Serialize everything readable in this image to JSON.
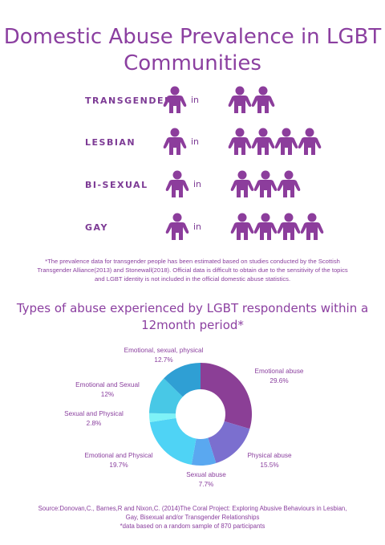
{
  "title": "Domestic Abuse Prevalence in LGBT Communities",
  "prevalence": [
    {
      "label": "TRANSGENDER",
      "numerator": 1,
      "in_text": "in",
      "denominator": 2
    },
    {
      "label": "LESBIAN",
      "numerator": 1,
      "in_text": "in",
      "denominator": 4
    },
    {
      "label": "BI-SEXUAL",
      "numerator": 1,
      "in_text": "in",
      "denominator": 3
    },
    {
      "label": "GAY",
      "numerator": 1,
      "in_text": "in",
      "denominator": 4
    }
  ],
  "note": "*The prevalence data for transgender people has been estimated based on studies conducted by the Scottish Transgender Alliance(2013) and Stonewall(2018). Official data is difficult to obtain due to the sensitivity of the topics and LGBT identity is not included in the  official domestic abuse statistics.",
  "chart_data": {
    "type": "pie",
    "title": "Types of abuse experienced by LGBT respondents within a 12month period*",
    "categories": [
      "Emotional abuse",
      "Physical abuse",
      "Sexual abuse",
      "Emotional and Physical",
      "Sexual and Physical",
      "Emotional and Sexual",
      "Emotional, sexual, physical"
    ],
    "values": [
      29.6,
      15.5,
      7.7,
      19.7,
      2.8,
      12,
      12.7
    ],
    "value_labels": [
      "29.6%",
      "15.5%",
      "7.7%",
      "19.7%",
      "2.8%",
      "12%",
      "12.7%"
    ],
    "colors": [
      "#8b3f96",
      "#7b6fcf",
      "#5aa8f0",
      "#4fd3f5",
      "#7ef2f7",
      "#48c8e6",
      "#2f9fd4"
    ],
    "donut": true
  },
  "source_line1": "Source:Donovan,C., Barnes,R and Nixon,C. (2014)The Coral Project: Exploring Abusive Behaviours in Lesbian,",
  "source_line2": "Gay, Bisexual and/or Transgender Relationships",
  "source_line3": "*data based on a random sample of 870 participants",
  "colors": {
    "accent": "#8b3fa0",
    "person": "#8c3d9c"
  }
}
